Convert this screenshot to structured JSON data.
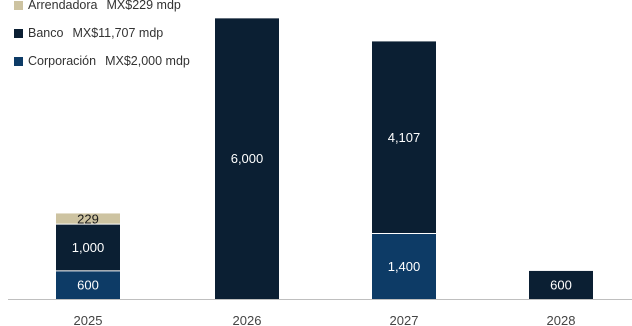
{
  "chart_data": {
    "type": "bar",
    "stacked": true,
    "categories": [
      "2025",
      "2026",
      "2027",
      "2028"
    ],
    "series": [
      {
        "name": "Corporación",
        "legend_value": "MX$2,000 mdp",
        "color": "#0d3b66",
        "label_color": "#ffffff",
        "values": [
          600,
          0,
          1400,
          0
        ],
        "labels": [
          "600",
          "",
          "1,400",
          ""
        ]
      },
      {
        "name": "Banco",
        "legend_value": "MX$11,707 mdp",
        "color": "#0b1f33",
        "label_color": "#ffffff",
        "values": [
          1000,
          6000,
          4107,
          600
        ],
        "labels": [
          "1,000",
          "6,000",
          "4,107",
          "600"
        ]
      },
      {
        "name": "Arrendadora",
        "legend_value": "MX$229 mdp",
        "color": "#cdc3a1",
        "label_color": "#1a1a1a",
        "values": [
          229,
          0,
          0,
          0
        ],
        "labels": [
          "229",
          "",
          "",
          ""
        ]
      }
    ],
    "ylim": [
      0,
      6200
    ],
    "grid": false,
    "legend_position": "top-left"
  }
}
